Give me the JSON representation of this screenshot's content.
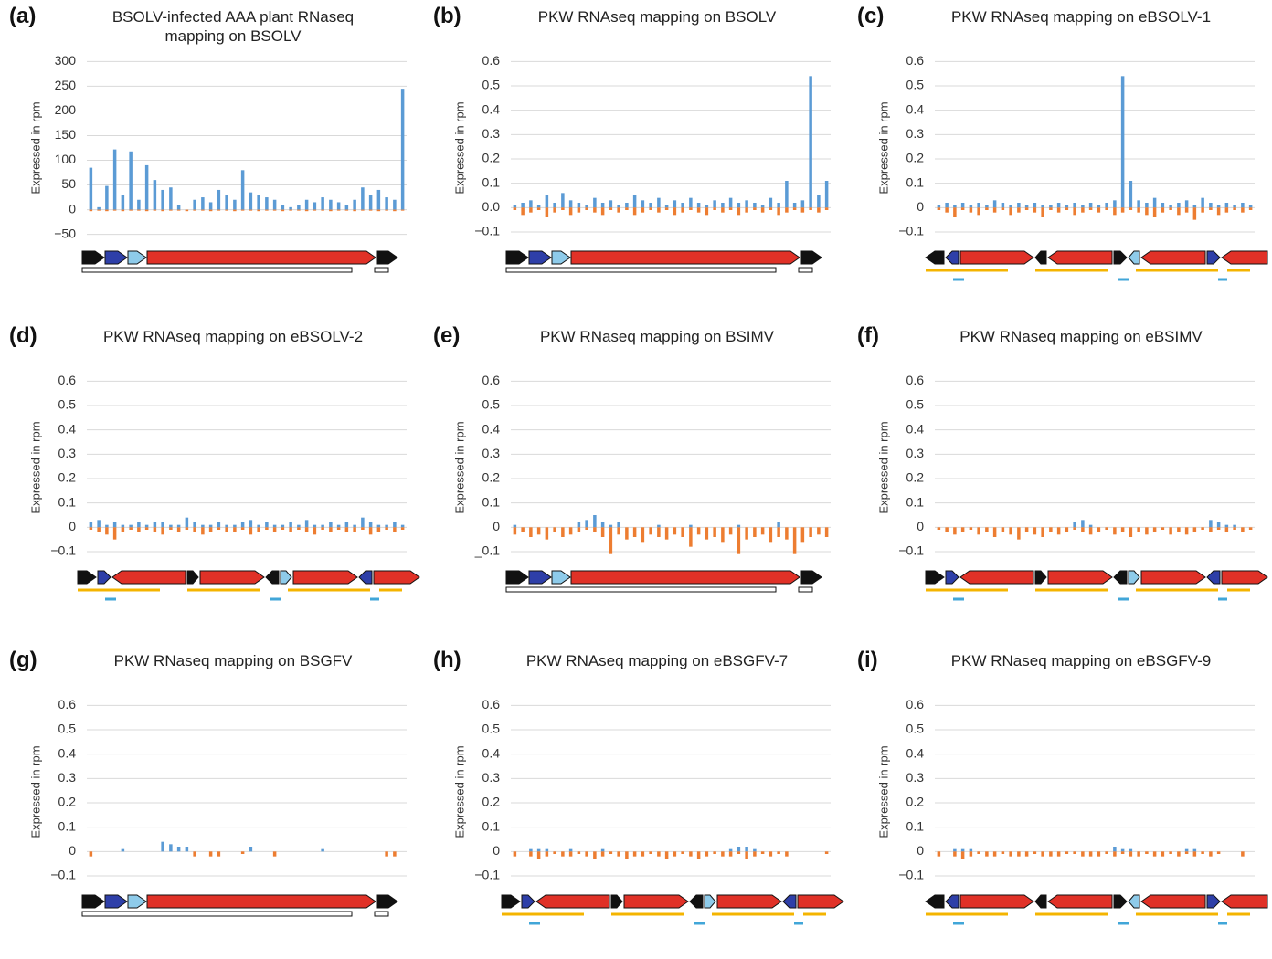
{
  "chart_data": [
    {
      "type": "bar",
      "panel_label": "(a)",
      "title": "BSOLV-infected AAA plant RNaseq mapping on BSOLV",
      "y_label": "Expressed in rpm",
      "ylim": [
        -60,
        310
      ],
      "yticks": [
        {
          "value": -50,
          "label": "−50"
        },
        0,
        50,
        100,
        150,
        200,
        250,
        300
      ],
      "series": [
        {
          "color": "#5b9bd5",
          "values": [
            85,
            5,
            48,
            122,
            30,
            118,
            20,
            90,
            60,
            40,
            45,
            10,
            0,
            20,
            25,
            15,
            40,
            30,
            20,
            80,
            35,
            30,
            25,
            20,
            10,
            5,
            10,
            20,
            15,
            25,
            20,
            15,
            10,
            20,
            45,
            30,
            40,
            25,
            20,
            245
          ]
        },
        {
          "color": "#ed7d31",
          "values": [
            -3,
            -2,
            -3,
            -2,
            -3,
            -2,
            -2,
            -3,
            -2,
            -3,
            -2,
            -2,
            -3,
            -2,
            -2,
            -3,
            -2,
            -2,
            -3,
            -2,
            -2,
            -3,
            -2,
            -2,
            -3,
            -2,
            -2,
            -3,
            -2,
            -2,
            -3,
            -2,
            -2,
            -3,
            -2,
            -2,
            -3,
            -2,
            -3,
            -2
          ]
        }
      ]
    },
    {
      "type": "bar",
      "panel_label": "(b)",
      "title": "PKW RNAseq mapping on BSOLV",
      "y_label": "Expressed in rpm",
      "ylim": [
        -0.13,
        0.62
      ],
      "yticks": [
        {
          "value": -0.1,
          "label": "−0.1"
        },
        {
          "value": 0,
          "label": "0.0"
        },
        0.1,
        0.2,
        0.3,
        0.4,
        0.5,
        0.6
      ],
      "series": [
        {
          "color": "#5b9bd5",
          "values": [
            0.01,
            0.02,
            0.03,
            0.01,
            0.05,
            0.02,
            0.06,
            0.03,
            0.02,
            0.01,
            0.04,
            0.02,
            0.03,
            0.01,
            0.02,
            0.05,
            0.03,
            0.02,
            0.04,
            0.01,
            0.03,
            0.02,
            0.04,
            0.02,
            0.01,
            0.03,
            0.02,
            0.04,
            0.02,
            0.03,
            0.02,
            0.01,
            0.04,
            0.02,
            0.11,
            0.02,
            0.03,
            0.54,
            0.05,
            0.11
          ]
        },
        {
          "color": "#ed7d31",
          "values": [
            -0.01,
            -0.03,
            -0.02,
            -0.01,
            -0.04,
            -0.02,
            -0.01,
            -0.03,
            -0.02,
            -0.01,
            -0.02,
            -0.03,
            -0.01,
            -0.02,
            -0.01,
            -0.03,
            -0.02,
            -0.01,
            -0.02,
            -0.01,
            -0.03,
            -0.02,
            -0.01,
            -0.02,
            -0.03,
            -0.01,
            -0.02,
            -0.01,
            -0.03,
            -0.02,
            -0.01,
            -0.02,
            -0.01,
            -0.03,
            -0.02,
            -0.01,
            -0.02,
            -0.01,
            -0.02,
            -0.01
          ]
        }
      ]
    },
    {
      "type": "bar",
      "panel_label": "(c)",
      "title": "PKW RNAseq mapping on eBSOLV-1",
      "y_label": "Expressed in rpm",
      "ylim": [
        -0.13,
        0.62
      ],
      "yticks": [
        {
          "value": -0.1,
          "label": "−0.1"
        },
        0,
        0.1,
        0.2,
        0.3,
        0.4,
        0.5,
        0.6
      ],
      "series": [
        {
          "color": "#5b9bd5",
          "values": [
            0.01,
            0.02,
            0.01,
            0.02,
            0.01,
            0.02,
            0.01,
            0.03,
            0.02,
            0.01,
            0.02,
            0.01,
            0.02,
            0.01,
            0.01,
            0.02,
            0.01,
            0.02,
            0.01,
            0.02,
            0.01,
            0.02,
            0.03,
            0.54,
            0.11,
            0.03,
            0.02,
            0.04,
            0.02,
            0.01,
            0.02,
            0.03,
            0.01,
            0.04,
            0.02,
            0.01,
            0.02,
            0.01,
            0.02,
            0.01
          ]
        },
        {
          "color": "#ed7d31",
          "values": [
            -0.01,
            -0.02,
            -0.04,
            -0.01,
            -0.02,
            -0.03,
            -0.01,
            -0.02,
            -0.01,
            -0.03,
            -0.02,
            -0.01,
            -0.02,
            -0.04,
            -0.01,
            -0.02,
            -0.01,
            -0.03,
            -0.02,
            -0.01,
            -0.02,
            -0.01,
            -0.03,
            -0.02,
            -0.01,
            -0.02,
            -0.03,
            -0.04,
            -0.02,
            -0.01,
            -0.03,
            -0.02,
            -0.05,
            -0.02,
            -0.01,
            -0.03,
            -0.02,
            -0.01,
            -0.02,
            -0.01
          ]
        }
      ]
    },
    {
      "type": "bar",
      "panel_label": "(d)",
      "title": "PKW RNAseq mapping on eBSOLV-2",
      "y_label": "Expressed in rpm",
      "ylim": [
        -0.13,
        0.62
      ],
      "yticks": [
        {
          "value": -0.1,
          "label": "−0.1"
        },
        0,
        0.1,
        0.2,
        0.3,
        0.4,
        0.5,
        0.6
      ],
      "series": [
        {
          "color": "#5b9bd5",
          "values": [
            0.02,
            0.03,
            0.01,
            0.02,
            0.01,
            0.01,
            0.02,
            0.01,
            0.02,
            0.02,
            0.01,
            0.01,
            0.04,
            0.02,
            0.01,
            0.01,
            0.02,
            0.01,
            0.01,
            0.02,
            0.03,
            0.01,
            0.02,
            0.01,
            0.01,
            0.02,
            0.01,
            0.03,
            0.01,
            0.01,
            0.02,
            0.01,
            0.02,
            0.01,
            0.04,
            0.02,
            0.01,
            0.01,
            0.02,
            0.01
          ]
        },
        {
          "color": "#ed7d31",
          "values": [
            -0.01,
            -0.02,
            -0.03,
            -0.05,
            -0.02,
            -0.01,
            -0.02,
            -0.01,
            -0.02,
            -0.03,
            -0.01,
            -0.02,
            -0.01,
            -0.02,
            -0.03,
            -0.02,
            -0.01,
            -0.02,
            -0.02,
            -0.01,
            -0.03,
            -0.02,
            -0.01,
            -0.02,
            -0.01,
            -0.02,
            -0.01,
            -0.02,
            -0.03,
            -0.01,
            -0.02,
            -0.01,
            -0.02,
            -0.02,
            -0.01,
            -0.03,
            -0.02,
            -0.01,
            -0.02,
            -0.01
          ]
        }
      ]
    },
    {
      "type": "bar",
      "panel_label": "(e)",
      "title": "PKW RNaseq mapping on BSIMV",
      "y_label": "Expressed in rpm",
      "ylim": [
        -0.13,
        0.62
      ],
      "yticks": [
        {
          "value": -0.1,
          "label": "_0.1"
        },
        0,
        0.1,
        0.2,
        0.3,
        0.4,
        0.5,
        0.6
      ],
      "series": [
        {
          "color": "#5b9bd5",
          "values": [
            0.01,
            0,
            0,
            0,
            0,
            0,
            0,
            0,
            0.02,
            0.03,
            0.05,
            0.02,
            0.01,
            0.02,
            0,
            0,
            0,
            0,
            0.01,
            0,
            0,
            0,
            0.01,
            0,
            0,
            0,
            0,
            0,
            0.01,
            0,
            0,
            0,
            0,
            0.02,
            0,
            0,
            0,
            0,
            0,
            0
          ]
        },
        {
          "color": "#ed7d31",
          "values": [
            -0.03,
            -0.02,
            -0.04,
            -0.03,
            -0.05,
            -0.02,
            -0.04,
            -0.03,
            -0.02,
            -0.01,
            -0.02,
            -0.04,
            -0.11,
            -0.03,
            -0.05,
            -0.04,
            -0.06,
            -0.03,
            -0.04,
            -0.05,
            -0.03,
            -0.04,
            -0.08,
            -0.03,
            -0.05,
            -0.04,
            -0.06,
            -0.03,
            -0.11,
            -0.05,
            -0.04,
            -0.03,
            -0.06,
            -0.04,
            -0.05,
            -0.11,
            -0.06,
            -0.04,
            -0.03,
            -0.04
          ]
        }
      ]
    },
    {
      "type": "bar",
      "panel_label": "(f)",
      "title": "PKW RNaseq mapping on eBSIMV",
      "y_label": "Expressed in rpm",
      "ylim": [
        -0.13,
        0.62
      ],
      "yticks": [
        {
          "value": -0.1,
          "label": "−0.1"
        },
        0,
        0.1,
        0.2,
        0.3,
        0.4,
        0.5,
        0.6
      ],
      "series": [
        {
          "color": "#5b9bd5",
          "values": [
            0,
            0,
            0,
            0,
            0,
            0,
            0,
            0,
            0,
            0,
            0,
            0,
            0,
            0,
            0,
            0,
            0,
            0.02,
            0.03,
            0.01,
            0,
            0,
            0,
            0,
            0,
            0,
            0,
            0,
            0,
            0,
            0,
            0,
            0,
            0,
            0.03,
            0.02,
            0.01,
            0.01,
            0,
            0
          ]
        },
        {
          "color": "#ed7d31",
          "values": [
            -0.01,
            -0.02,
            -0.03,
            -0.02,
            -0.01,
            -0.03,
            -0.02,
            -0.04,
            -0.02,
            -0.03,
            -0.05,
            -0.02,
            -0.03,
            -0.04,
            -0.02,
            -0.03,
            -0.02,
            -0.01,
            -0.02,
            -0.03,
            -0.02,
            -0.01,
            -0.03,
            -0.02,
            -0.04,
            -0.02,
            -0.03,
            -0.02,
            -0.01,
            -0.03,
            -0.02,
            -0.03,
            -0.02,
            -0.01,
            -0.02,
            -0.01,
            -0.02,
            -0.01,
            -0.02,
            -0.01
          ]
        }
      ]
    },
    {
      "type": "bar",
      "panel_label": "(g)",
      "title": "PKW RNaseq mapping on BSGFV",
      "y_label": "Expressed in rpm",
      "ylim": [
        -0.13,
        0.62
      ],
      "yticks": [
        {
          "value": -0.1,
          "label": "−0.1"
        },
        0,
        0.1,
        0.2,
        0.3,
        0.4,
        0.5,
        0.6
      ],
      "series": [
        {
          "color": "#5b9bd5",
          "values": [
            0,
            0,
            0,
            0,
            0.01,
            0,
            0,
            0,
            0,
            0.04,
            0.03,
            0.02,
            0.02,
            0,
            0,
            0,
            0,
            0,
            0,
            0,
            0.02,
            0,
            0,
            0,
            0,
            0,
            0,
            0,
            0,
            0.01,
            0,
            0,
            0,
            0,
            0,
            0,
            0,
            0,
            0,
            0
          ]
        },
        {
          "color": "#ed7d31",
          "values": [
            -0.02,
            0,
            0,
            0,
            0,
            0,
            0,
            0,
            0,
            0,
            0,
            0,
            0,
            -0.02,
            0,
            -0.02,
            -0.02,
            0,
            0,
            -0.01,
            0,
            0,
            0,
            -0.02,
            0,
            0,
            0,
            0,
            0,
            0,
            0,
            0,
            0,
            0,
            0,
            0,
            0,
            -0.02,
            -0.02,
            0
          ]
        }
      ]
    },
    {
      "type": "bar",
      "panel_label": "(h)",
      "title": "PKW RNAseq mapping on eBSGFV-7",
      "y_label": "Expressed in rpm",
      "ylim": [
        -0.13,
        0.62
      ],
      "yticks": [
        {
          "value": -0.1,
          "label": "−0.1"
        },
        0,
        0.1,
        0.2,
        0.3,
        0.4,
        0.5,
        0.6
      ],
      "series": [
        {
          "color": "#5b9bd5",
          "values": [
            0,
            0,
            0.01,
            0.01,
            0.01,
            0,
            0,
            0.01,
            0,
            0,
            0,
            0.01,
            0,
            0,
            0,
            0,
            0,
            0,
            0,
            0,
            0,
            0,
            0,
            0,
            0,
            0,
            0,
            0.01,
            0.02,
            0.02,
            0.01,
            0,
            0,
            0,
            0,
            0,
            0,
            0,
            0,
            0
          ]
        },
        {
          "color": "#ed7d31",
          "values": [
            -0.02,
            0,
            -0.02,
            -0.03,
            -0.02,
            -0.01,
            -0.02,
            -0.02,
            -0.01,
            -0.02,
            -0.03,
            -0.02,
            -0.01,
            -0.02,
            -0.03,
            -0.02,
            -0.02,
            -0.01,
            -0.02,
            -0.03,
            -0.02,
            -0.01,
            -0.02,
            -0.03,
            -0.02,
            -0.01,
            -0.02,
            -0.02,
            -0.01,
            -0.03,
            -0.02,
            -0.01,
            -0.02,
            -0.01,
            -0.02,
            0,
            0,
            0,
            0,
            -0.01
          ]
        }
      ]
    },
    {
      "type": "bar",
      "panel_label": "(i)",
      "title": "PKW RNaseq mapping on eBSGFV-9",
      "y_label": "Expressed in rpm",
      "ylim": [
        -0.13,
        0.62
      ],
      "yticks": [
        {
          "value": -0.1,
          "label": "−0.1"
        },
        0,
        0.1,
        0.2,
        0.3,
        0.4,
        0.5,
        0.6
      ],
      "series": [
        {
          "color": "#5b9bd5",
          "values": [
            0,
            0,
            0.01,
            0.01,
            0.01,
            0,
            0,
            0,
            0,
            0,
            0,
            0,
            0,
            0,
            0,
            0,
            0,
            0,
            0,
            0,
            0,
            0,
            0.02,
            0.01,
            0.01,
            0,
            0,
            0,
            0,
            0,
            0,
            0.01,
            0.01,
            0,
            0,
            0,
            0,
            0,
            0,
            0
          ]
        },
        {
          "color": "#ed7d31",
          "values": [
            -0.02,
            0,
            -0.02,
            -0.03,
            -0.02,
            -0.01,
            -0.02,
            -0.02,
            -0.01,
            -0.02,
            -0.02,
            -0.02,
            -0.01,
            -0.02,
            -0.02,
            -0.02,
            -0.01,
            -0.01,
            -0.02,
            -0.02,
            -0.02,
            -0.01,
            -0.02,
            -0.01,
            -0.02,
            -0.02,
            -0.01,
            -0.02,
            -0.02,
            -0.01,
            -0.02,
            -0.01,
            -0.02,
            -0.01,
            -0.02,
            -0.01,
            0,
            0,
            -0.02,
            0
          ]
        }
      ]
    }
  ]
}
